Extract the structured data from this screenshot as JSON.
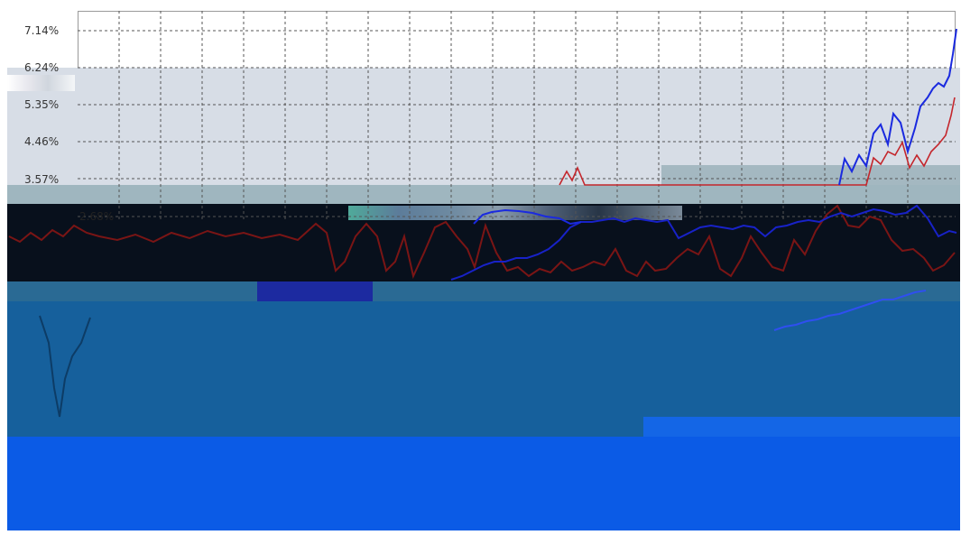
{
  "chart": {
    "y_ticks": [
      "7.14%",
      "6.24%",
      "5.35%",
      "4.46%",
      "3.57%",
      "2.68%"
    ],
    "series_colors": {
      "red": "#c4262c",
      "blue": "#1a2adf",
      "dark_red": "#8a1a1a"
    },
    "grid": "dashed"
  },
  "colors": {
    "light_band": "#d7dde6",
    "teal_band": "#9fb6bf",
    "dark_band": "#08101c",
    "steel_band": "#2a6a94",
    "mid_blue_band": "#16609c",
    "bright_blue_band": "#0b5be6"
  }
}
